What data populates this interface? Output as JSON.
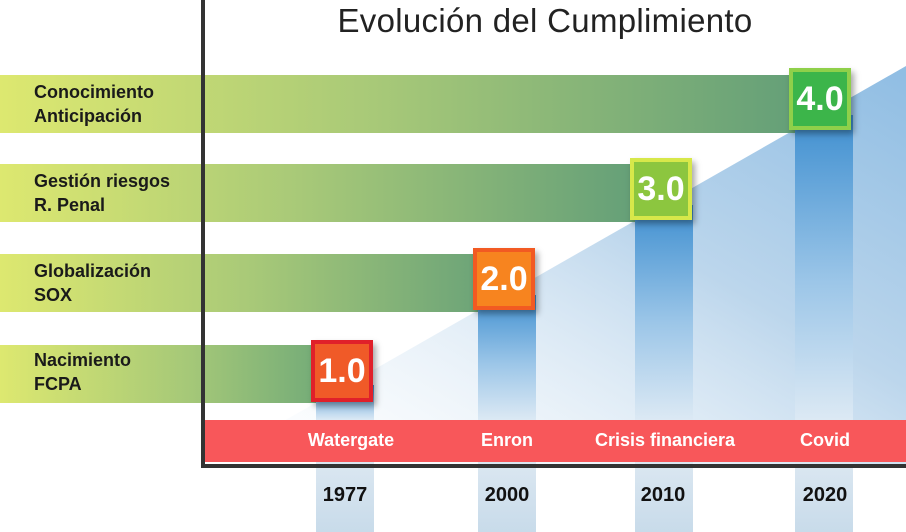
{
  "title": "Evolución del Cumplimiento",
  "levels": [
    {
      "label_line1": "Conocimiento",
      "label_line2": "Anticipación",
      "badge": "4.0",
      "badge_color": "#3cb54a",
      "badge_border": "#8fd04a"
    },
    {
      "label_line1": "Gestión riesgos",
      "label_line2": "R. Penal",
      "badge": "3.0",
      "badge_color": "#8cc63f",
      "badge_border": "#d7e84a"
    },
    {
      "label_line1": "Globalización",
      "label_line2": "SOX",
      "badge": "2.0",
      "badge_color": "#f7841f",
      "badge_border": "#f25a22"
    },
    {
      "label_line1": "Nacimiento",
      "label_line2": "FCPA",
      "badge": "1.0",
      "badge_color": "#f05a28",
      "badge_border": "#e0202a"
    }
  ],
  "events": [
    "Watergate",
    "Enron",
    "Crisis financiera",
    "Covid"
  ],
  "years": [
    "1977",
    "2000",
    "2010",
    "2020"
  ],
  "colors": {
    "band_start": "#dde870",
    "band_end": "#6aa678",
    "ribbon": "#f8575a",
    "column": "#4a93d1"
  }
}
